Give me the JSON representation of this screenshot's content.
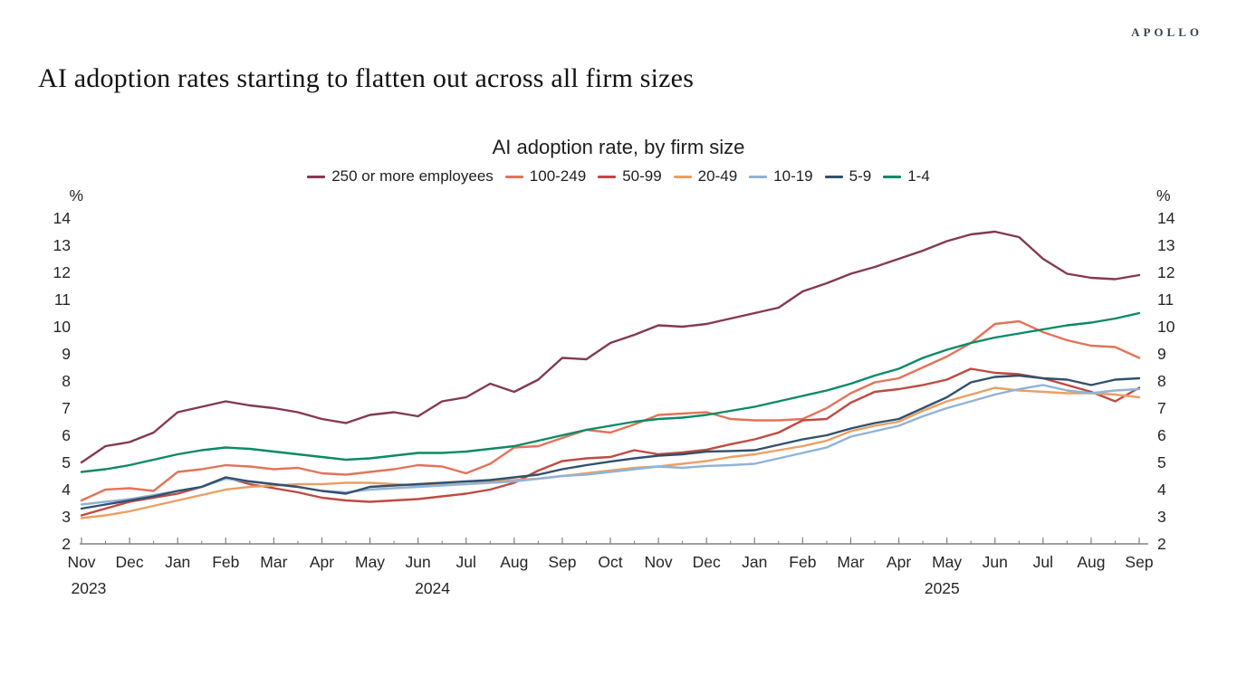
{
  "page": {
    "logo": "APOLLO",
    "headline": "AI adoption rates starting to flatten out across all firm sizes"
  },
  "chart_data": {
    "type": "line",
    "title": "AI adoption rate, by firm size",
    "unit_label": "%",
    "ylim": [
      2,
      14
    ],
    "yticks": [
      14,
      13,
      12,
      11,
      10,
      9,
      8,
      7,
      6,
      5,
      4,
      3,
      2
    ],
    "grid": false,
    "legend_position": "top",
    "points_per_month": 2,
    "x_tick_labels": [
      "Nov",
      "Dec",
      "Jan",
      "Feb",
      "Mar",
      "Apr",
      "May",
      "Jun",
      "Jul",
      "Aug",
      "Sep",
      "Oct",
      "Nov",
      "Dec",
      "Jan",
      "Feb",
      "Mar",
      "Apr",
      "May",
      "Jun",
      "Jul",
      "Aug",
      "Sep"
    ],
    "year_labels": [
      {
        "text": "2023",
        "month_index": 0.15
      },
      {
        "text": "2024",
        "month_index": 7.3
      },
      {
        "text": "2025",
        "month_index": 17.9
      }
    ],
    "series": [
      {
        "name": "250 or more employees",
        "color": "#833a50",
        "values": [
          5.0,
          5.6,
          5.75,
          6.1,
          6.85,
          7.05,
          7.25,
          7.1,
          7.0,
          6.85,
          6.6,
          6.45,
          6.75,
          6.85,
          6.7,
          7.25,
          7.4,
          7.9,
          7.6,
          8.05,
          8.85,
          8.8,
          9.4,
          9.7,
          10.05,
          10.0,
          10.1,
          10.3,
          10.5,
          10.7,
          11.3,
          11.6,
          11.95,
          12.2,
          12.5,
          12.8,
          13.15,
          13.4,
          13.5,
          13.3,
          12.5,
          11.95,
          11.8,
          11.75,
          11.9
        ]
      },
      {
        "name": "100-249",
        "color": "#e4735a",
        "values": [
          3.6,
          4.0,
          4.05,
          3.95,
          4.65,
          4.75,
          4.9,
          4.85,
          4.75,
          4.8,
          4.6,
          4.55,
          4.65,
          4.75,
          4.9,
          4.85,
          4.6,
          4.95,
          5.55,
          5.6,
          5.9,
          6.2,
          6.1,
          6.4,
          6.75,
          6.8,
          6.85,
          6.6,
          6.55,
          6.55,
          6.6,
          7.0,
          7.55,
          7.95,
          8.1,
          8.5,
          8.9,
          9.4,
          10.1,
          10.2,
          9.8,
          9.5,
          9.3,
          9.25,
          8.85
        ]
      },
      {
        "name": "50-99",
        "color": "#bf4a42",
        "values": [
          3.05,
          3.3,
          3.55,
          3.7,
          3.85,
          4.1,
          4.45,
          4.2,
          4.05,
          3.9,
          3.7,
          3.6,
          3.55,
          3.6,
          3.65,
          3.75,
          3.85,
          4.0,
          4.25,
          4.7,
          5.05,
          5.15,
          5.2,
          5.45,
          5.3,
          5.37,
          5.47,
          5.67,
          5.85,
          6.1,
          6.55,
          6.6,
          7.2,
          7.6,
          7.7,
          7.85,
          8.05,
          8.45,
          8.3,
          8.25,
          8.1,
          7.85,
          7.6,
          7.25,
          7.75
        ]
      },
      {
        "name": "20-49",
        "color": "#eb9f63",
        "values": [
          2.95,
          3.05,
          3.2,
          3.4,
          3.6,
          3.8,
          4.0,
          4.1,
          4.15,
          4.2,
          4.2,
          4.25,
          4.25,
          4.2,
          4.15,
          4.2,
          4.2,
          4.3,
          4.35,
          4.4,
          4.5,
          4.6,
          4.7,
          4.8,
          4.85,
          4.95,
          5.05,
          5.2,
          5.3,
          5.45,
          5.6,
          5.8,
          6.15,
          6.35,
          6.5,
          6.9,
          7.25,
          7.5,
          7.75,
          7.65,
          7.6,
          7.55,
          7.55,
          7.5,
          7.4
        ]
      },
      {
        "name": "10-19",
        "color": "#90b3d7",
        "values": [
          3.45,
          3.55,
          3.65,
          3.8,
          3.95,
          4.1,
          4.4,
          4.3,
          4.2,
          4.1,
          3.95,
          3.9,
          4.0,
          4.05,
          4.1,
          4.15,
          4.2,
          4.25,
          4.3,
          4.4,
          4.5,
          4.55,
          4.65,
          4.75,
          4.85,
          4.8,
          4.87,
          4.9,
          4.95,
          5.15,
          5.35,
          5.55,
          5.95,
          6.15,
          6.35,
          6.7,
          7.0,
          7.25,
          7.5,
          7.7,
          7.85,
          7.65,
          7.55,
          7.65,
          7.7
        ]
      },
      {
        "name": "5-9",
        "color": "#32506e",
        "values": [
          3.3,
          3.45,
          3.6,
          3.75,
          3.95,
          4.1,
          4.45,
          4.3,
          4.2,
          4.1,
          3.95,
          3.85,
          4.1,
          4.15,
          4.2,
          4.25,
          4.3,
          4.35,
          4.45,
          4.55,
          4.75,
          4.9,
          5.03,
          5.15,
          5.25,
          5.3,
          5.4,
          5.42,
          5.45,
          5.65,
          5.85,
          6.0,
          6.25,
          6.45,
          6.6,
          7.0,
          7.4,
          7.95,
          8.15,
          8.2,
          8.1,
          8.05,
          7.85,
          8.05,
          8.1
        ]
      },
      {
        "name": "1-4",
        "color": "#0b8a66",
        "values": [
          4.65,
          4.75,
          4.9,
          5.1,
          5.3,
          5.45,
          5.55,
          5.5,
          5.4,
          5.3,
          5.2,
          5.1,
          5.15,
          5.25,
          5.35,
          5.35,
          5.4,
          5.5,
          5.6,
          5.8,
          6.0,
          6.2,
          6.35,
          6.5,
          6.6,
          6.65,
          6.75,
          6.9,
          7.05,
          7.25,
          7.45,
          7.65,
          7.9,
          8.2,
          8.45,
          8.85,
          9.15,
          9.4,
          9.6,
          9.75,
          9.9,
          10.05,
          10.15,
          10.3,
          10.5
        ]
      }
    ],
    "axis_color": "#808080"
  }
}
